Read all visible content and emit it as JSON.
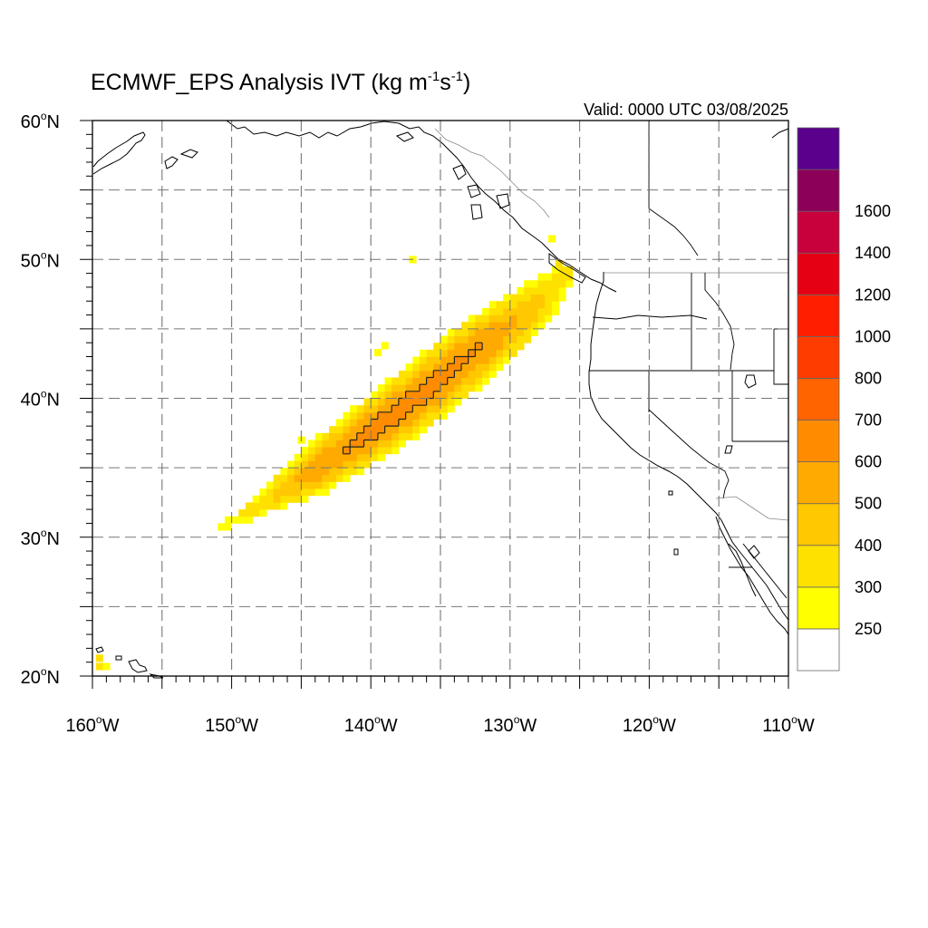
{
  "title": {
    "main": "ECMWF_EPS Analysis IVT (kg m",
    "exp1": "-1",
    "mid": "s",
    "exp2": "-1",
    "close": ")"
  },
  "valid_label": "Valid: 0000 UTC 03/08/2025",
  "axes": {
    "lon_ticks": [
      {
        "value": -160,
        "label": "160",
        "hemi": "W"
      },
      {
        "value": -150,
        "label": "150",
        "hemi": "W"
      },
      {
        "value": -140,
        "label": "140",
        "hemi": "W"
      },
      {
        "value": -130,
        "label": "130",
        "hemi": "W"
      },
      {
        "value": -120,
        "label": "120",
        "hemi": "W"
      },
      {
        "value": -110,
        "label": "110",
        "hemi": "W"
      }
    ],
    "lat_ticks": [
      {
        "value": 20,
        "label": "20",
        "hemi": "N"
      },
      {
        "value": 30,
        "label": "30",
        "hemi": "N"
      },
      {
        "value": 40,
        "label": "40",
        "hemi": "N"
      },
      {
        "value": 50,
        "label": "50",
        "hemi": "N"
      },
      {
        "value": 60,
        "label": "60",
        "hemi": "N"
      }
    ],
    "lon_range": [
      -160,
      -110
    ],
    "lat_range": [
      20,
      60
    ],
    "gridline_lons": [
      -155,
      -150,
      -145,
      -140,
      -135,
      -130,
      -125,
      -120,
      -115
    ],
    "gridline_lats": [
      25,
      30,
      35,
      40,
      45,
      50,
      55
    ]
  },
  "colorbar": {
    "colors": [
      "#ffffff",
      "#ffff00",
      "#ffe100",
      "#ffc800",
      "#ffaa00",
      "#ff8c00",
      "#ff6400",
      "#ff3c00",
      "#ff1e00",
      "#e60014",
      "#c8003c",
      "#8c005a",
      "#5a008c"
    ],
    "labels": [
      "250",
      "300",
      "400",
      "500",
      "600",
      "700",
      "800",
      "1000",
      "1200",
      "1400",
      "1600"
    ]
  },
  "chart_data": {
    "type": "heatmap",
    "title": "ECMWF_EPS Analysis IVT (kg m-1s-1)",
    "valid_time": "0000 UTC 03/08/2025",
    "units": "kg m-1 s-1",
    "xlim": [
      -160,
      -110
    ],
    "ylim": [
      20,
      60
    ],
    "levels": [
      250,
      300,
      400,
      500,
      600,
      700,
      800,
      1000,
      1200,
      1400,
      1600
    ],
    "atmospheric_river_axis": {
      "lon": [
        -151,
        -148,
        -146,
        -144,
        -142,
        -140,
        -138,
        -136,
        -134,
        -132,
        -130,
        -128,
        -126
      ],
      "lat": [
        30.5,
        32.3,
        33.5,
        34.8,
        36.2,
        37.6,
        39.0,
        40.6,
        42.2,
        43.8,
        45.3,
        47.0,
        49.0
      ],
      "max_ivt": [
        260,
        350,
        480,
        560,
        600,
        640,
        640,
        630,
        620,
        600,
        520,
        430,
        320
      ],
      "half_width_deg": [
        0.8,
        1.4,
        1.8,
        2.2,
        2.4,
        2.5,
        2.6,
        2.7,
        2.7,
        2.7,
        2.6,
        2.3,
        1.6
      ]
    },
    "extra_cells": [
      {
        "lon": -137,
        "lat": 50,
        "ivt": 260
      },
      {
        "lon": -139,
        "lat": 43.8,
        "ivt": 260
      },
      {
        "lon": -139.5,
        "lat": 43.3,
        "ivt": 260
      },
      {
        "lon": -145,
        "lat": 37,
        "ivt": 270
      },
      {
        "lon": -159.5,
        "lat": 21.3,
        "ivt": 300
      },
      {
        "lon": -159.5,
        "lat": 20.7,
        "ivt": 320
      },
      {
        "lon": -159.0,
        "lat": 20.7,
        "ivt": 280
      },
      {
        "lon": -127,
        "lat": 51.5,
        "ivt": 270
      },
      {
        "lon": -126.5,
        "lat": 49.7,
        "ivt": 300
      }
    ],
    "contour_level": 600
  }
}
